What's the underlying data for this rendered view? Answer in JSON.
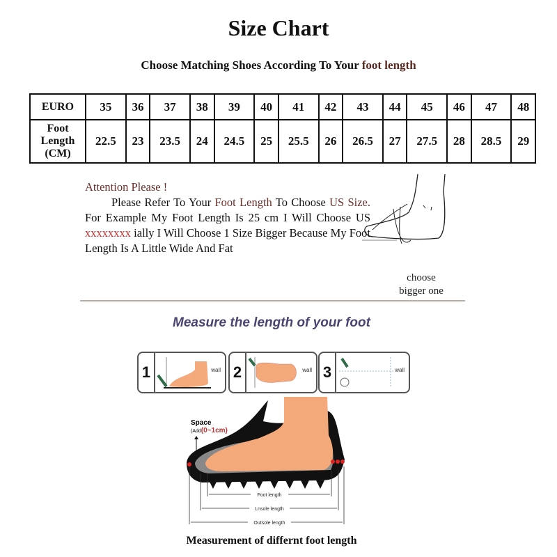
{
  "title": "Size Chart",
  "subtitle": {
    "prefix": "Choose Matching Shoes According To Your ",
    "highlight": "foot length"
  },
  "table": {
    "row1_header": "EURO",
    "row2_header": [
      "Foot",
      "Length",
      "(CM)"
    ],
    "euro": [
      "35",
      "36",
      "37",
      "38",
      "39",
      "40",
      "41",
      "42",
      "43",
      "44",
      "45",
      "46",
      "47",
      "48"
    ],
    "foot_length_cm": [
      "22.5",
      "23",
      "23.5",
      "24",
      "24.5",
      "25",
      "25.5",
      "26",
      "26.5",
      "27",
      "27.5",
      "28",
      "28.5",
      "29"
    ]
  },
  "attention": {
    "heading": "Attention Please !",
    "t1": "Please Refer To Your ",
    "t2": "Foot Length",
    "t3": " To Choose ",
    "t4": "US Size.",
    "t5": " For Example My Foot Length Is 25 cm I Will Choose US ",
    "t6": "xxxxxxxx",
    "t7": " ially I Will Choose 1 Size Bigger Because My Foot Length Is A Little Wide And Fat"
  },
  "choose_bigger": [
    "choose",
    "bigger one"
  ],
  "measure_heading": "Measure the length of your foot",
  "steps": [
    {
      "num": "1",
      "wall": "wall"
    },
    {
      "num": "2",
      "wall": "wall"
    },
    {
      "num": "3",
      "wall": "wall"
    }
  ],
  "diagram": {
    "space_label": "Space",
    "add_prefix": "(Add",
    "add_value": "(0~1cm)",
    "foot_length": "Foot length",
    "insole_length": "Lnsole length",
    "outsole_length": "Outsole length"
  },
  "caption": "Measurement of differnt foot length",
  "colors": {
    "accent_text": "#6b2e2a",
    "heading_purple": "#4b4470",
    "skin": "#f4a97a",
    "highlight_red": "#c03030"
  }
}
